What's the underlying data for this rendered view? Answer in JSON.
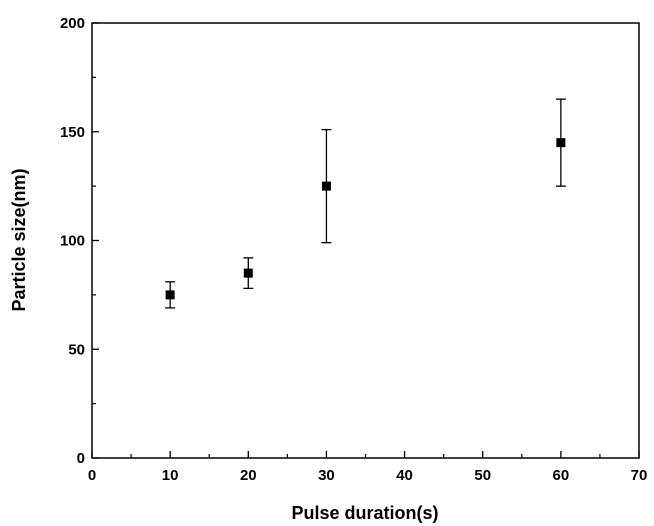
{
  "chart_data": {
    "type": "scatter",
    "title": "",
    "xlabel": "Pulse duration(s)",
    "ylabel": "Particle size(nm)",
    "xlim": [
      0,
      70
    ],
    "ylim": [
      0,
      200
    ],
    "x_ticks": [
      0,
      10,
      20,
      30,
      40,
      50,
      60,
      70
    ],
    "y_ticks": [
      0,
      50,
      100,
      150,
      200
    ],
    "x_minor_step": 5,
    "y_minor_step": 25,
    "grid": false,
    "legend": "none",
    "marker": "square",
    "color": "#000000",
    "series": [
      {
        "points": [
          {
            "x": 10,
            "y": 75,
            "err_low": 69,
            "err_high": 81
          },
          {
            "x": 20,
            "y": 85,
            "err_low": 78,
            "err_high": 92
          },
          {
            "x": 30,
            "y": 125,
            "err_low": 99,
            "err_high": 151
          },
          {
            "x": 60,
            "y": 145,
            "err_low": 125,
            "err_high": 165
          }
        ]
      }
    ]
  }
}
